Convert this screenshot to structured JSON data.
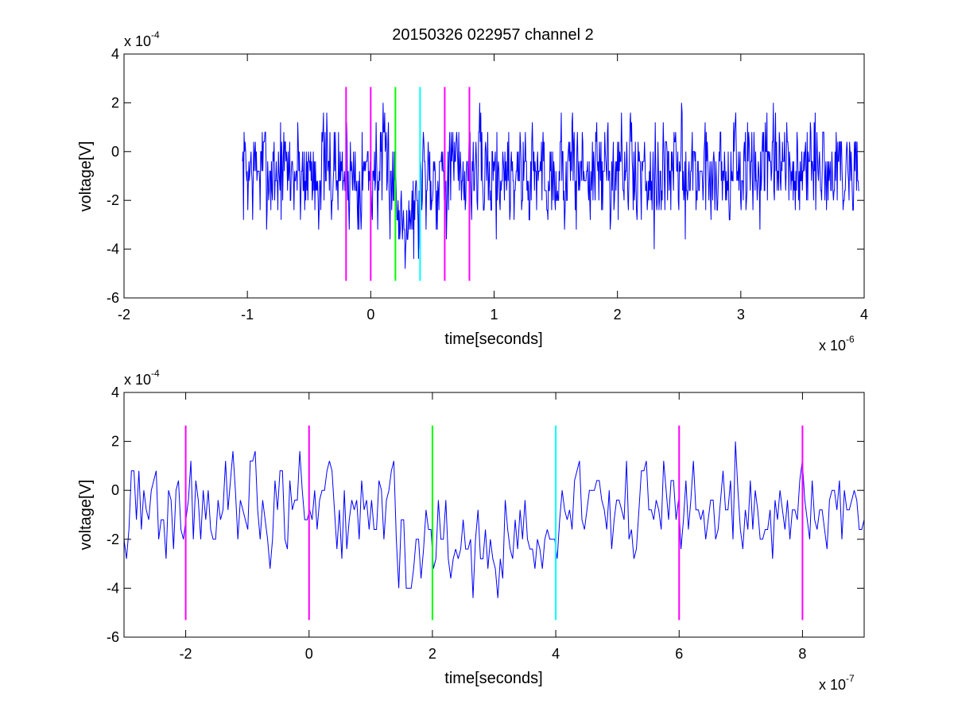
{
  "figure_title": "20150326 022957 channel 2",
  "chart_data": [
    {
      "type": "line",
      "title": "20150326 022957 channel 2",
      "xlabel": "time[seconds]",
      "ylabel": "voltage[V]",
      "x_multiplier": {
        "base": "x 10",
        "exponent": "-6"
      },
      "y_multiplier": {
        "base": "x 10",
        "exponent": "-4"
      },
      "xlim": [
        -2,
        4
      ],
      "ylim": [
        -6,
        4
      ],
      "xticks": [
        -2,
        -1,
        0,
        1,
        2,
        3,
        4
      ],
      "xtick_labels": [
        "-2",
        "-1",
        "0",
        "1",
        "2",
        "3",
        "4"
      ],
      "yticks": [
        -6,
        -4,
        -2,
        0,
        2,
        4
      ],
      "ytick_labels": [
        "-6",
        "-4",
        "-2",
        "0",
        "2",
        "4"
      ],
      "grid": false,
      "signal": {
        "color": "#0000ff",
        "x_start": -1.04,
        "x_end": 3.96,
        "quantization_step": 0.8,
        "baseline": -0.8,
        "dip_interval": [
          0.2,
          0.4
        ],
        "dip_level": -2.4,
        "min": -4.8,
        "max": 2.4
      },
      "markers": [
        {
          "x": -0.2,
          "color": "#ff00ff",
          "y_range": [
            -5.3,
            2.65
          ]
        },
        {
          "x": 0.0,
          "color": "#ff00ff",
          "y_range": [
            -5.3,
            2.65
          ]
        },
        {
          "x": 0.2,
          "color": "#00ff00",
          "y_range": [
            -5.3,
            2.65
          ]
        },
        {
          "x": 0.4,
          "color": "#00ffff",
          "y_range": [
            -5.3,
            2.65
          ]
        },
        {
          "x": 0.6,
          "color": "#ff00ff",
          "y_range": [
            -5.3,
            2.65
          ]
        },
        {
          "x": 0.8,
          "color": "#ff00ff",
          "y_range": [
            -5.3,
            2.65
          ]
        }
      ]
    },
    {
      "type": "line",
      "title": "",
      "xlabel": "time[seconds]",
      "ylabel": "voltage[V]",
      "x_multiplier": {
        "base": "x 10",
        "exponent": "-7"
      },
      "y_multiplier": {
        "base": "x 10",
        "exponent": "-4"
      },
      "xlim": [
        -3,
        9
      ],
      "ylim": [
        -6,
        4
      ],
      "xticks": [
        -2,
        0,
        2,
        4,
        6,
        8
      ],
      "xtick_labels": [
        "-2",
        "0",
        "2",
        "4",
        "6",
        "8"
      ],
      "yticks": [
        -6,
        -4,
        -2,
        0,
        2,
        4
      ],
      "ytick_labels": [
        "-6",
        "-4",
        "-2",
        "0",
        "2",
        "4"
      ],
      "grid": false,
      "signal": {
        "color": "#0000ff",
        "x_start": -3,
        "x_end": 9,
        "quantization_step": 0.8,
        "baseline": -0.8,
        "dip_interval": [
          1.4,
          4.0
        ],
        "dip_level": -2.4,
        "min": -4.8,
        "max": 2.4
      },
      "markers": [
        {
          "x": -2,
          "color": "#ff00ff",
          "y_range": [
            -5.3,
            2.65
          ]
        },
        {
          "x": 0,
          "color": "#ff00ff",
          "y_range": [
            -5.3,
            2.65
          ]
        },
        {
          "x": 2,
          "color": "#00ff00",
          "y_range": [
            -5.3,
            2.65
          ]
        },
        {
          "x": 4,
          "color": "#00ffff",
          "y_range": [
            -5.3,
            2.65
          ]
        },
        {
          "x": 6,
          "color": "#ff00ff",
          "y_range": [
            -5.3,
            2.65
          ]
        },
        {
          "x": 8,
          "color": "#ff00ff",
          "y_range": [
            -5.3,
            2.65
          ]
        }
      ]
    }
  ]
}
